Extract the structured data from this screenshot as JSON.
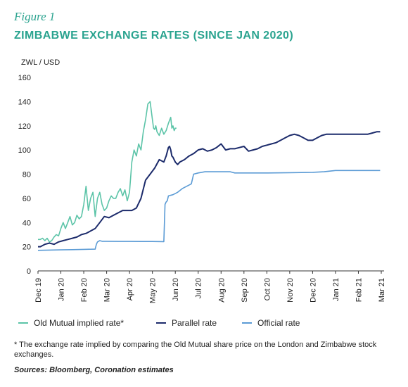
{
  "figure_label": "Figure 1",
  "title": "ZIMBABWE EXCHANGE RATES (SINCE JAN 2020)",
  "footnote": "* The exchange rate implied by comparing the Old Mutual share price on the London and Zimbabwe stock exchanges.",
  "source": "Sources: Bloomberg, Coronation estimates",
  "colors": {
    "old_mutual": "#5cc4a8",
    "parallel": "#1c2b6b",
    "official": "#5b9bd5",
    "axis": "#333333",
    "title": "#2aa38f"
  },
  "chart_data": {
    "type": "line",
    "ylabel": "ZWL / USD",
    "ylim": [
      0,
      160
    ],
    "yticks": [
      0,
      20,
      40,
      60,
      80,
      100,
      120,
      140,
      160
    ],
    "xlim": [
      0,
      15
    ],
    "xtick_labels": [
      "Dec 19",
      "Jan 20",
      "Feb 20",
      "Mar 20",
      "Apr 20",
      "May 20",
      "Jun 20",
      "Jul 20",
      "Aug 20",
      "Sep 20",
      "Oct 20",
      "Nov 20",
      "Dec 20",
      "Jan 21",
      "Feb 21",
      "Mar 21"
    ],
    "grid": false,
    "legend_position": "bottom",
    "series": [
      {
        "name": "Old Mutual implied rate*",
        "color": "#5cc4a8",
        "x": [
          0,
          0.1,
          0.2,
          0.3,
          0.4,
          0.5,
          0.6,
          0.7,
          0.8,
          0.9,
          1.0,
          1.1,
          1.2,
          1.3,
          1.4,
          1.5,
          1.6,
          1.7,
          1.8,
          1.9,
          2.0,
          2.1,
          2.2,
          2.3,
          2.4,
          2.5,
          2.6,
          2.7,
          2.8,
          2.9,
          3.0,
          3.1,
          3.2,
          3.3,
          3.4,
          3.5,
          3.6,
          3.7,
          3.8,
          3.9,
          4.0,
          4.1,
          4.2,
          4.3,
          4.4,
          4.5,
          4.6,
          4.7,
          4.8,
          4.9,
          5.0,
          5.05,
          5.1,
          5.15,
          5.2,
          5.3,
          5.4,
          5.5,
          5.6,
          5.7,
          5.8,
          5.85,
          5.9,
          5.95,
          6.0,
          6.05
        ],
        "values": [
          26,
          26,
          27,
          25,
          27,
          24,
          25,
          28,
          30,
          29,
          35,
          40,
          35,
          40,
          45,
          38,
          40,
          46,
          43,
          45,
          55,
          70,
          50,
          60,
          65,
          45,
          60,
          65,
          55,
          50,
          52,
          58,
          62,
          60,
          60,
          65,
          68,
          62,
          67,
          58,
          65,
          90,
          100,
          95,
          105,
          100,
          115,
          125,
          138,
          140,
          125,
          118,
          117,
          120,
          115,
          112,
          118,
          113,
          116,
          122,
          127,
          118,
          120,
          116,
          118,
          118
        ]
      },
      {
        "name": "Parallel rate",
        "color": "#1c2b6b",
        "x": [
          0,
          0.1,
          0.3,
          0.5,
          0.7,
          0.9,
          1.1,
          1.3,
          1.5,
          1.7,
          1.9,
          2.1,
          2.3,
          2.5,
          2.7,
          2.9,
          3.1,
          3.3,
          3.5,
          3.7,
          3.9,
          4.1,
          4.3,
          4.5,
          4.7,
          4.9,
          5.1,
          5.3,
          5.5,
          5.6,
          5.7,
          5.75,
          5.8,
          5.85,
          5.9,
          6.0,
          6.1,
          6.2,
          6.4,
          6.6,
          6.8,
          7.0,
          7.2,
          7.4,
          7.6,
          7.8,
          8.0,
          8.2,
          8.4,
          8.6,
          8.8,
          9.0,
          9.2,
          9.4,
          9.6,
          9.8,
          10.0,
          10.2,
          10.4,
          10.6,
          10.8,
          11.0,
          11.2,
          11.4,
          11.6,
          11.8,
          12.0,
          12.2,
          12.4,
          12.6,
          12.8,
          13.0,
          13.2,
          13.4,
          13.6,
          13.8,
          14.0,
          14.2,
          14.4,
          14.6,
          14.8,
          14.95
        ],
        "values": [
          20,
          20,
          22,
          23,
          22,
          24,
          25,
          26,
          27,
          28,
          30,
          31,
          33,
          35,
          40,
          45,
          44,
          46,
          48,
          50,
          50,
          50,
          52,
          60,
          75,
          80,
          85,
          92,
          90,
          95,
          102,
          103,
          100,
          95,
          94,
          90,
          88,
          90,
          92,
          95,
          97,
          100,
          101,
          99,
          100,
          102,
          105,
          100,
          101,
          101,
          102,
          103,
          99,
          100,
          101,
          103,
          104,
          105,
          106,
          108,
          110,
          112,
          113,
          112,
          110,
          108,
          108,
          110,
          112,
          113,
          113,
          113,
          113,
          113,
          113,
          113,
          113,
          113,
          113,
          114,
          115,
          115
        ]
      },
      {
        "name": "Official rate",
        "color": "#5b9bd5",
        "x": [
          0,
          0.5,
          1.0,
          1.5,
          2.0,
          2.5,
          2.55,
          2.6,
          2.7,
          2.8,
          3.0,
          3.5,
          4.0,
          4.5,
          5.0,
          5.5,
          5.55,
          5.6,
          5.65,
          5.7,
          5.9,
          6.1,
          6.3,
          6.5,
          6.7,
          6.8,
          7.0,
          7.3,
          7.6,
          8.0,
          8.4,
          8.6,
          9.0,
          10.0,
          11.0,
          12.0,
          12.5,
          13.0,
          14.0,
          14.95
        ],
        "values": [
          17,
          17.2,
          17.4,
          17.6,
          17.8,
          18,
          22,
          24,
          25,
          24.5,
          24.5,
          24.4,
          24.4,
          24.3,
          24.3,
          24.2,
          55,
          57,
          58,
          62,
          63,
          65,
          68,
          70,
          72,
          80,
          81,
          82,
          82,
          82,
          82,
          81,
          81,
          81,
          81.2,
          81.5,
          82,
          83,
          83,
          83
        ]
      }
    ]
  }
}
